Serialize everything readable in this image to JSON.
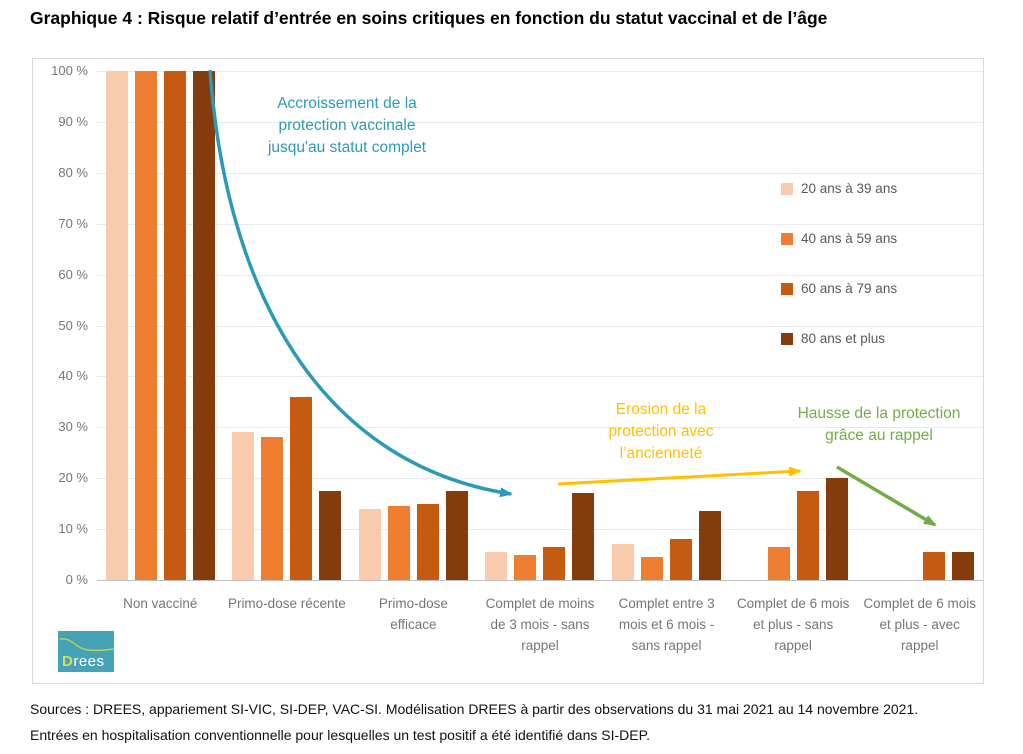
{
  "title": "Graphique 4 : Risque relatif d’entrée en soins critiques en fonction du statut vaccinal et de l’âge",
  "chart_data": {
    "type": "bar",
    "categories": [
      "Non vacciné",
      "Primo-dose récente",
      "Primo-dose efficace",
      "Complet de moins de 3 mois - sans rappel",
      "Complet entre 3 mois et 6 mois - sans rappel",
      "Complet de 6 mois et plus - sans rappel",
      "Complet de 6 mois et plus - avec rappel"
    ],
    "series": [
      {
        "name": "20 ans à 39 ans",
        "color": "#F8CBAD",
        "values": [
          100,
          29,
          14,
          5.5,
          7,
          null,
          null
        ]
      },
      {
        "name": "40 ans à 59 ans",
        "color": "#ED7D31",
        "values": [
          100,
          28,
          14.5,
          5,
          4.5,
          6.5,
          null
        ]
      },
      {
        "name": "60 ans à 79 ans",
        "color": "#C55A11",
        "values": [
          100,
          36,
          15,
          6.5,
          8,
          17.5,
          5.5
        ]
      },
      {
        "name": "80 ans et plus",
        "color": "#843C0C",
        "values": [
          100,
          17.5,
          17.5,
          17,
          13.5,
          20,
          5.5
        ]
      }
    ],
    "ylim": [
      0,
      100
    ],
    "yticks": [
      "0 %",
      "10 %",
      "20 %",
      "30 %",
      "40 %",
      "50 %",
      "60 %",
      "70 %",
      "80 %",
      "90 %",
      "100 %"
    ],
    "grid": true,
    "legend_position": "inside-right"
  },
  "annotations": [
    {
      "id": "increase",
      "text_lines": [
        "Accroissement de la",
        "protection vaccinale",
        "jusqu'au statut complet"
      ],
      "color": "#2C9AB7"
    },
    {
      "id": "erosion",
      "text_lines": [
        "Erosion de la",
        "protection avec",
        "l’ancienneté"
      ],
      "color": "#FFC000"
    },
    {
      "id": "boost",
      "text_lines": [
        "Hausse de la protection",
        "grâce au rappel"
      ],
      "color": "#70AD47"
    }
  ],
  "logo": {
    "text": "Drees"
  },
  "sources": [
    "Sources : DREES, appariement SI-VIC, SI-DEP, VAC-SI. Modélisation DREES à partir des observations du 31 mai 2021 au 14 novembre 2021.",
    "Entrées en hospitalisation conventionnelle pour lesquelles un test positif a été identifié dans SI-DEP."
  ]
}
